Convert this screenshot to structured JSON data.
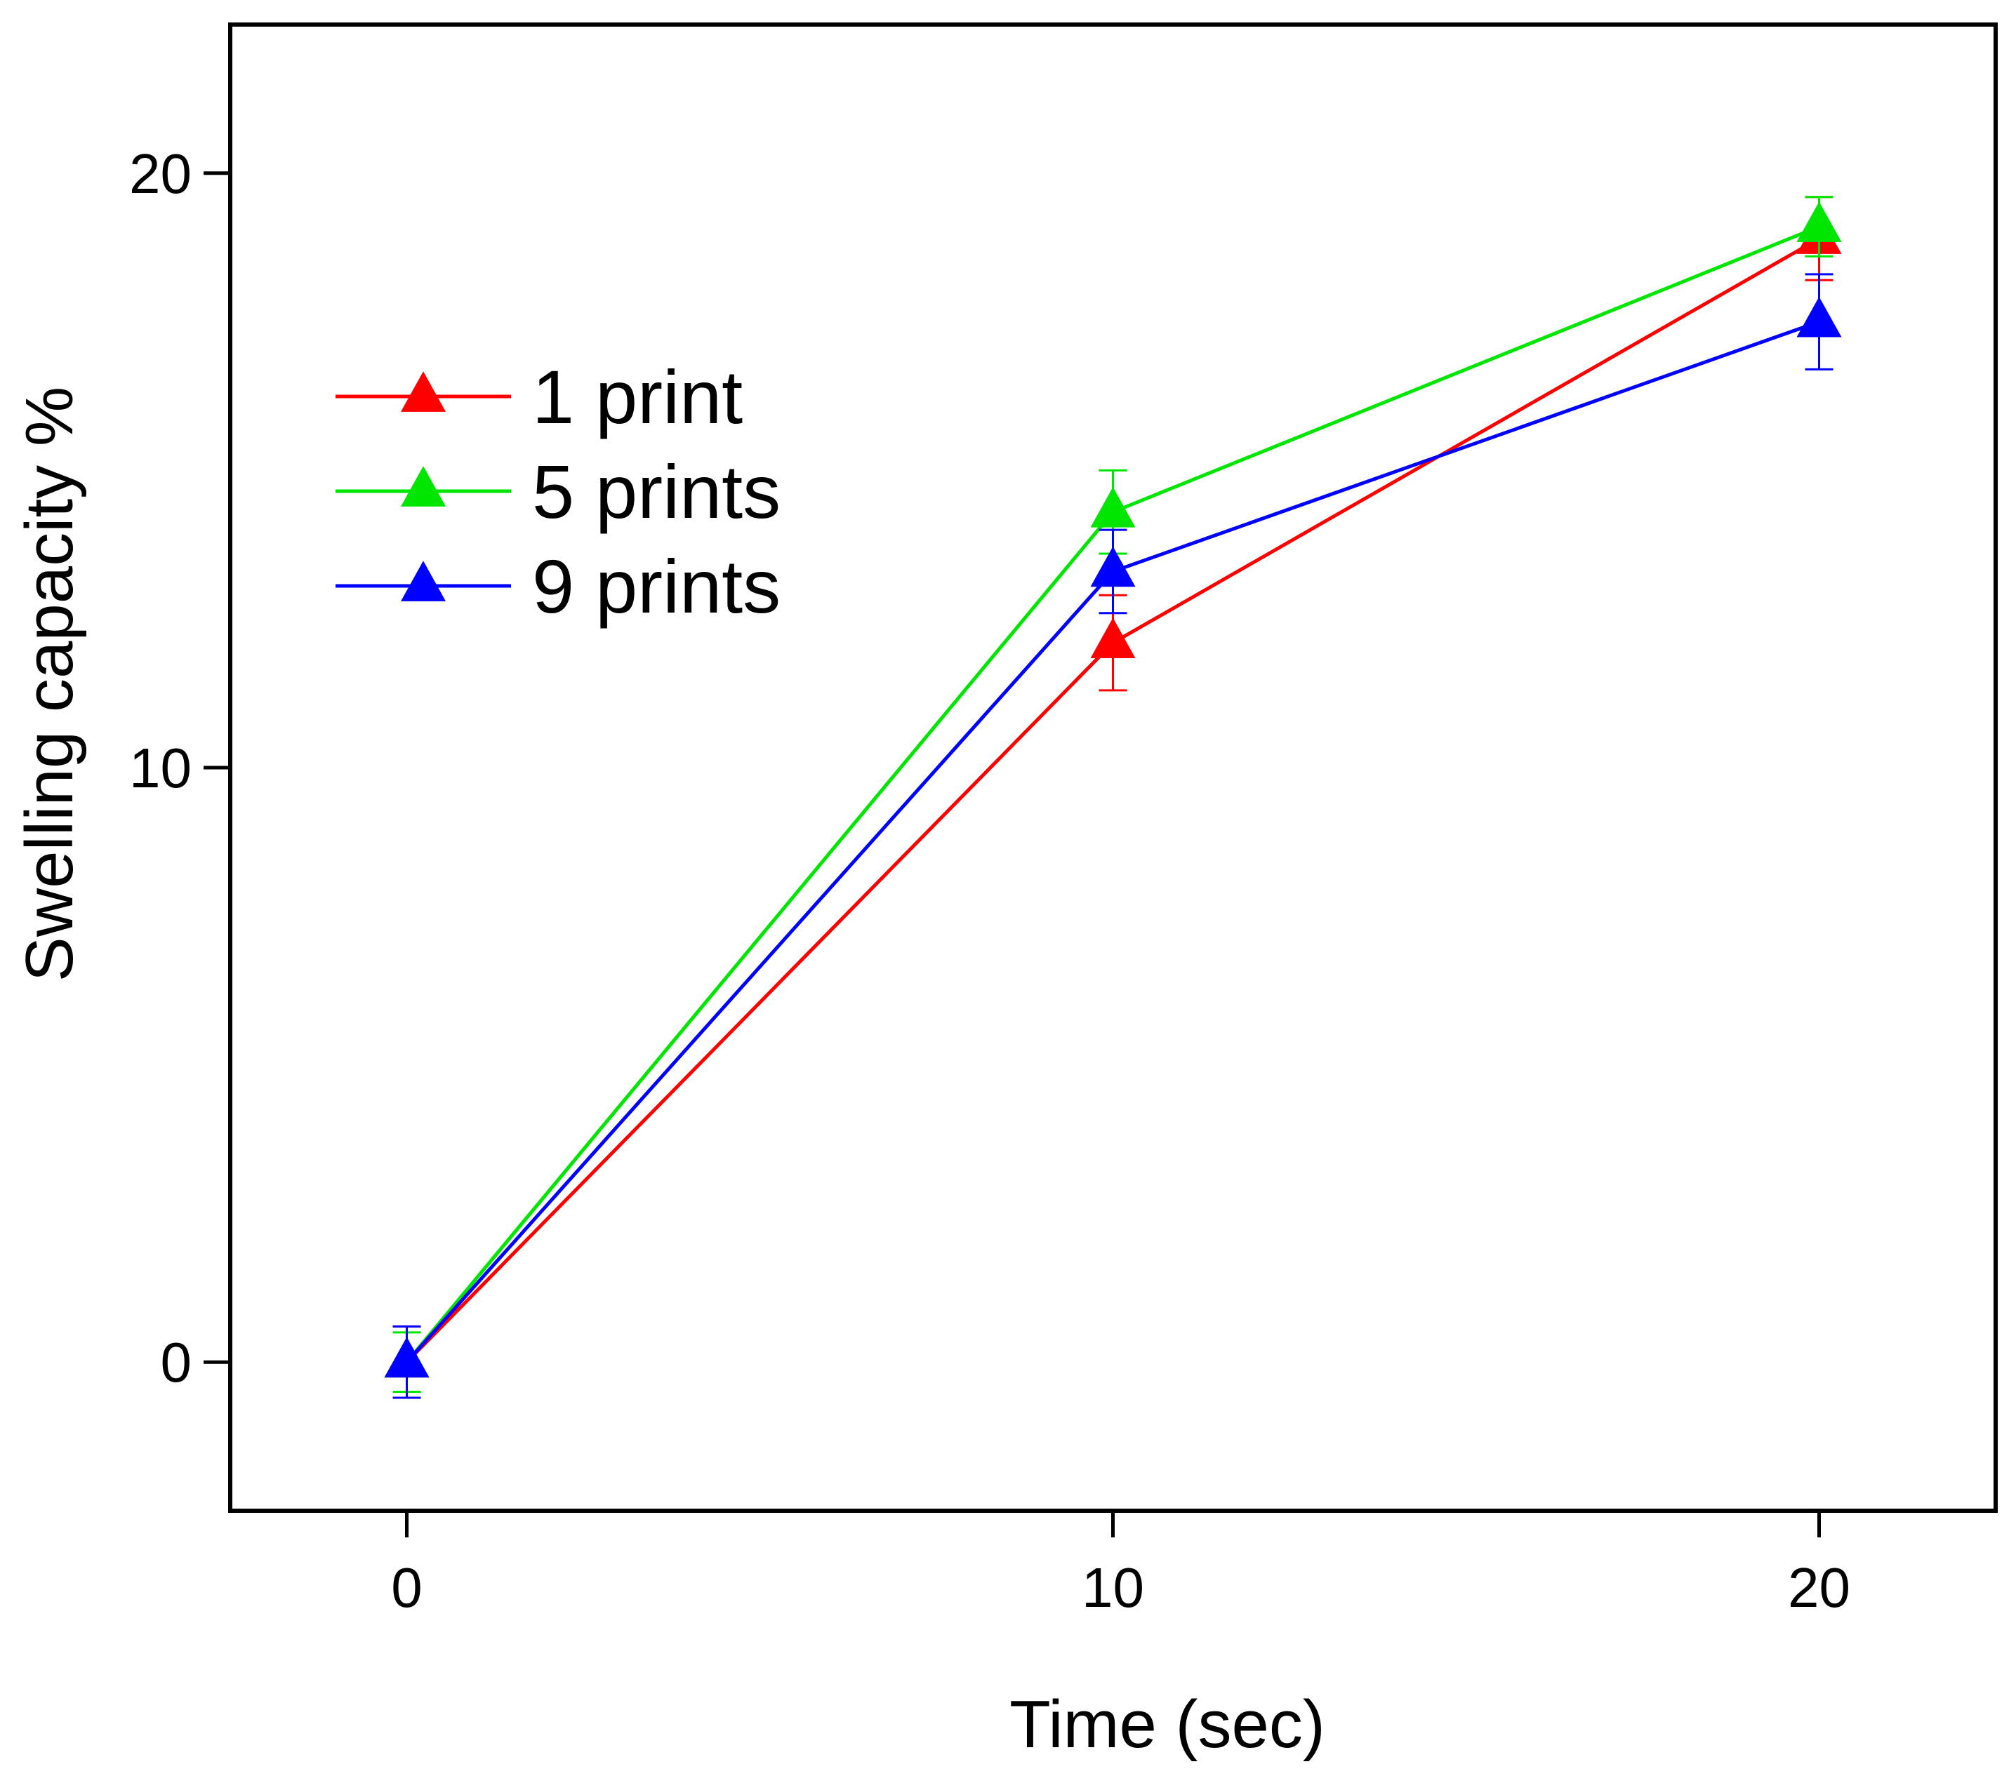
{
  "chart_data": {
    "type": "line",
    "title": "",
    "xlabel": "Time (sec)",
    "ylabel": "Swelling capacity %",
    "xlim": [
      -2.5,
      22.5
    ],
    "ylim": [
      -2.5,
      22.5
    ],
    "x": [
      0,
      10,
      20
    ],
    "xticks": [
      0,
      10,
      20
    ],
    "yticks": [
      0,
      10,
      20
    ],
    "grid": false,
    "legend_position": "upper-left",
    "series": [
      {
        "name": "1 print",
        "color": "#ff0000",
        "marker": "triangle-up",
        "values": [
          0,
          12.1,
          18.9
        ],
        "errors": [
          0.6,
          0.8,
          0.7
        ]
      },
      {
        "name": "5 prints",
        "color": "#00e600",
        "marker": "triangle-up",
        "values": [
          0,
          14.3,
          19.1
        ],
        "errors": [
          0.5,
          0.7,
          0.5
        ]
      },
      {
        "name": "9 prints",
        "color": "#0000ff",
        "marker": "triangle-up",
        "values": [
          0,
          13.3,
          17.5
        ],
        "errors": [
          0.6,
          0.7,
          0.8
        ]
      }
    ]
  }
}
